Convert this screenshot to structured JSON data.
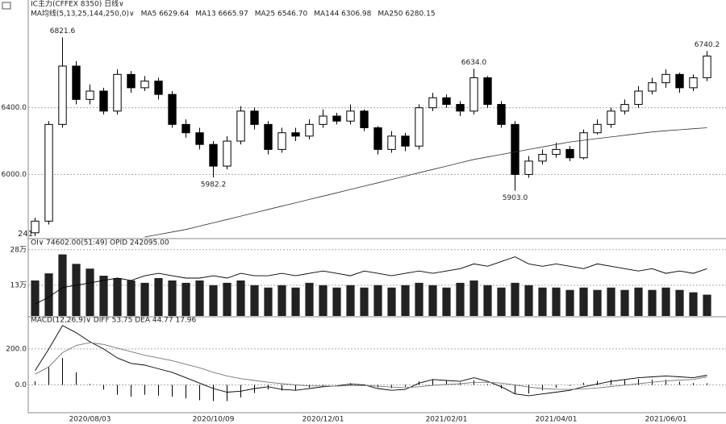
{
  "chart_data": [
    {
      "type": "candlestick",
      "title": "IC主力(CFFEX 8350) 日线∨",
      "legend_labels": [
        "MA均线(5,13,25,144,250,0)∨",
        "MA5 6629.64",
        "MA13 6665.97",
        "MA25 6546.70",
        "MA144 6306.98",
        "MA250 6280.15"
      ],
      "annotation": "241",
      "ylim": [
        5620,
        6940
      ],
      "yticks": [
        {
          "value": 6000,
          "label": "6000.0"
        },
        {
          "value": 6400,
          "label": "6400.0"
        }
      ],
      "grid": true,
      "color": "#000000",
      "open": [
        5650,
        5720,
        6300,
        6650,
        6450,
        6500,
        6380,
        6600,
        6520,
        6560,
        6480,
        6300,
        6250,
        6180,
        6050,
        6200,
        6380,
        6300,
        6150,
        6250,
        6230,
        6300,
        6350,
        6320,
        6380,
        6280,
        6150,
        6230,
        6170,
        6400,
        6460,
        6420,
        6380,
        6580,
        6420,
        6300,
        6000,
        6080,
        6120,
        6150,
        6100,
        6250,
        6300,
        6380,
        6420,
        6500,
        6550,
        6600,
        6520,
        6580
      ],
      "high": [
        5740,
        6320,
        6821.6,
        6680,
        6540,
        6520,
        6630,
        6620,
        6590,
        6580,
        6500,
        6330,
        6280,
        6200,
        6230,
        6410,
        6400,
        6320,
        6280,
        6280,
        6330,
        6390,
        6370,
        6420,
        6390,
        6290,
        6260,
        6250,
        6420,
        6490,
        6480,
        6440,
        6634,
        6590,
        6440,
        6320,
        6110,
        6150,
        6190,
        6170,
        6270,
        6330,
        6400,
        6450,
        6530,
        6580,
        6630,
        6610,
        6600,
        6740.2
      ],
      "low": [
        5630,
        5700,
        6280,
        6420,
        6420,
        6360,
        6360,
        6490,
        6500,
        6450,
        6280,
        6220,
        6150,
        5982.2,
        6030,
        6180,
        6270,
        6120,
        6130,
        6200,
        6210,
        6280,
        6300,
        6300,
        6260,
        6120,
        6130,
        6140,
        6150,
        6380,
        6400,
        6350,
        6360,
        6400,
        6280,
        5903,
        5980,
        6060,
        6100,
        6080,
        6090,
        6240,
        6280,
        6360,
        6400,
        6480,
        6520,
        6490,
        6500,
        6560
      ],
      "close": [
        5720,
        6300,
        6650,
        6450,
        6500,
        6380,
        6600,
        6520,
        6560,
        6480,
        6300,
        6250,
        6180,
        6050,
        6200,
        6380,
        6300,
        6150,
        6250,
        6230,
        6300,
        6350,
        6320,
        6380,
        6280,
        6150,
        6230,
        6170,
        6400,
        6460,
        6420,
        6380,
        6580,
        6420,
        6300,
        6000,
        6080,
        6120,
        6150,
        6100,
        6250,
        6300,
        6380,
        6420,
        6500,
        6550,
        6600,
        6520,
        6580,
        6710
      ],
      "high_value_labels": [
        null,
        null,
        "6821.6",
        null,
        null,
        null,
        null,
        null,
        null,
        null,
        null,
        null,
        null,
        null,
        null,
        null,
        null,
        null,
        null,
        null,
        null,
        null,
        null,
        null,
        null,
        null,
        null,
        null,
        null,
        null,
        null,
        null,
        "6634.0",
        null,
        null,
        null,
        null,
        null,
        null,
        null,
        null,
        null,
        null,
        null,
        null,
        null,
        null,
        null,
        null,
        "6740.2"
      ],
      "low_value_labels": [
        null,
        null,
        null,
        null,
        null,
        null,
        null,
        null,
        null,
        null,
        null,
        null,
        null,
        "5982.2",
        null,
        null,
        null,
        null,
        null,
        null,
        null,
        null,
        null,
        null,
        null,
        null,
        null,
        null,
        null,
        null,
        null,
        null,
        null,
        null,
        null,
        "5903.0",
        null,
        null,
        null,
        null,
        null,
        null,
        null,
        null,
        null,
        null,
        null,
        null,
        null,
        null
      ],
      "series": [
        {
          "color": "#333333",
          "values": [
            null,
            null,
            null,
            null,
            null,
            null,
            null,
            null,
            5625,
            5640,
            5655,
            5670,
            5690,
            5710,
            5730,
            5750,
            5770,
            5790,
            5810,
            5830,
            5850,
            5870,
            5890,
            5910,
            5930,
            5950,
            5970,
            5990,
            6010,
            6030,
            6050,
            6070,
            6090,
            6105,
            6120,
            6135,
            6150,
            6165,
            6180,
            6195,
            6205,
            6215,
            6225,
            6235,
            6245,
            6255,
            6262,
            6268,
            6274,
            6280
          ]
        }
      ]
    },
    {
      "type": "bar",
      "title": "OI∨ 74602.00(51:49) OPID 242095.00",
      "ylim": [
        0,
        32
      ],
      "yticks": [
        {
          "value": 13,
          "label": "13万"
        },
        {
          "value": 28,
          "label": "28万"
        }
      ],
      "grid": true,
      "series": [
        {
          "type": "bar",
          "color": "#222222",
          "values": [
            15,
            18,
            26,
            22,
            20,
            17,
            16,
            15,
            14,
            16,
            15,
            14,
            15,
            13,
            14,
            15,
            13,
            12,
            13,
            12,
            14,
            13,
            12,
            13,
            12,
            13,
            12,
            13,
            14,
            13,
            12,
            14,
            15,
            13,
            12,
            14,
            13,
            12,
            12,
            11,
            12,
            11,
            12,
            11,
            12,
            11,
            12,
            11,
            10,
            9
          ]
        },
        {
          "type": "line",
          "color": "#000000",
          "values": [
            5,
            8,
            12,
            13,
            14,
            15,
            16,
            15,
            17,
            18,
            17,
            16,
            16,
            17,
            16,
            18,
            17,
            17,
            18,
            17,
            18,
            19,
            18,
            17,
            19,
            18,
            17,
            18,
            19,
            18,
            19,
            20,
            22,
            21,
            23,
            25,
            22,
            21,
            22,
            21,
            20,
            22,
            21,
            20,
            19,
            20,
            18,
            19,
            18,
            20
          ]
        }
      ]
    },
    {
      "type": "bar",
      "title": "MACD(12,26,9)∨ DIFF 53.75 DEA 44.77 17.96",
      "ylim": [
        -150,
        370
      ],
      "yticks": [
        {
          "value": 0,
          "label": "0.0"
        },
        {
          "value": 200,
          "label": "200.0"
        }
      ],
      "grid": true,
      "categories": [
        null,
        null,
        null,
        null,
        "2020/08/03",
        null,
        null,
        null,
        null,
        null,
        null,
        null,
        null,
        "2020/10/09",
        null,
        null,
        null,
        null,
        null,
        null,
        null,
        "2020/12/01",
        null,
        null,
        null,
        null,
        null,
        null,
        null,
        null,
        "2021/02/01",
        null,
        null,
        null,
        null,
        null,
        null,
        null,
        "2021/04/01",
        null,
        null,
        null,
        null,
        null,
        null,
        null,
        "2021/06/01",
        null,
        null,
        null
      ],
      "series": [
        {
          "type": "stem",
          "color": "#000000",
          "values": [
            20,
            100,
            150,
            70,
            5,
            -25,
            -55,
            -65,
            -55,
            -60,
            -65,
            -75,
            -85,
            -90,
            -90,
            -70,
            -45,
            -25,
            -32,
            -30,
            -15,
            -4,
            1,
            9,
            3,
            -13,
            -18,
            -10,
            20,
            32,
            22,
            13,
            26,
            5,
            -20,
            -50,
            -48,
            -30,
            -16,
            -5,
            12,
            22,
            29,
            31,
            33,
            30,
            28,
            18,
            10,
            9
          ]
        },
        {
          "type": "line",
          "color": "#000000",
          "values": [
            80,
            200,
            330,
            290,
            240,
            200,
            150,
            120,
            110,
            90,
            70,
            40,
            10,
            -20,
            -40,
            -35,
            -20,
            -10,
            -25,
            -30,
            -20,
            -10,
            -5,
            5,
            0,
            -20,
            -30,
            -25,
            10,
            30,
            25,
            20,
            40,
            20,
            -10,
            -50,
            -60,
            -50,
            -40,
            -30,
            -10,
            5,
            20,
            30,
            40,
            45,
            50,
            45,
            40,
            54
          ]
        },
        {
          "type": "line",
          "color": "#777777",
          "values": [
            60,
            100,
            180,
            220,
            235,
            225,
            205,
            185,
            165,
            150,
            135,
            115,
            95,
            70,
            50,
            35,
            25,
            15,
            7,
            0,
            -5,
            -6,
            -6,
            -4,
            -3,
            -7,
            -12,
            -15,
            -10,
            -2,
            3,
            7,
            14,
            15,
            10,
            0,
            -12,
            -20,
            -24,
            -25,
            -22,
            -17,
            -9,
            -1,
            7,
            15,
            22,
            27,
            30,
            45
          ]
        }
      ]
    }
  ]
}
